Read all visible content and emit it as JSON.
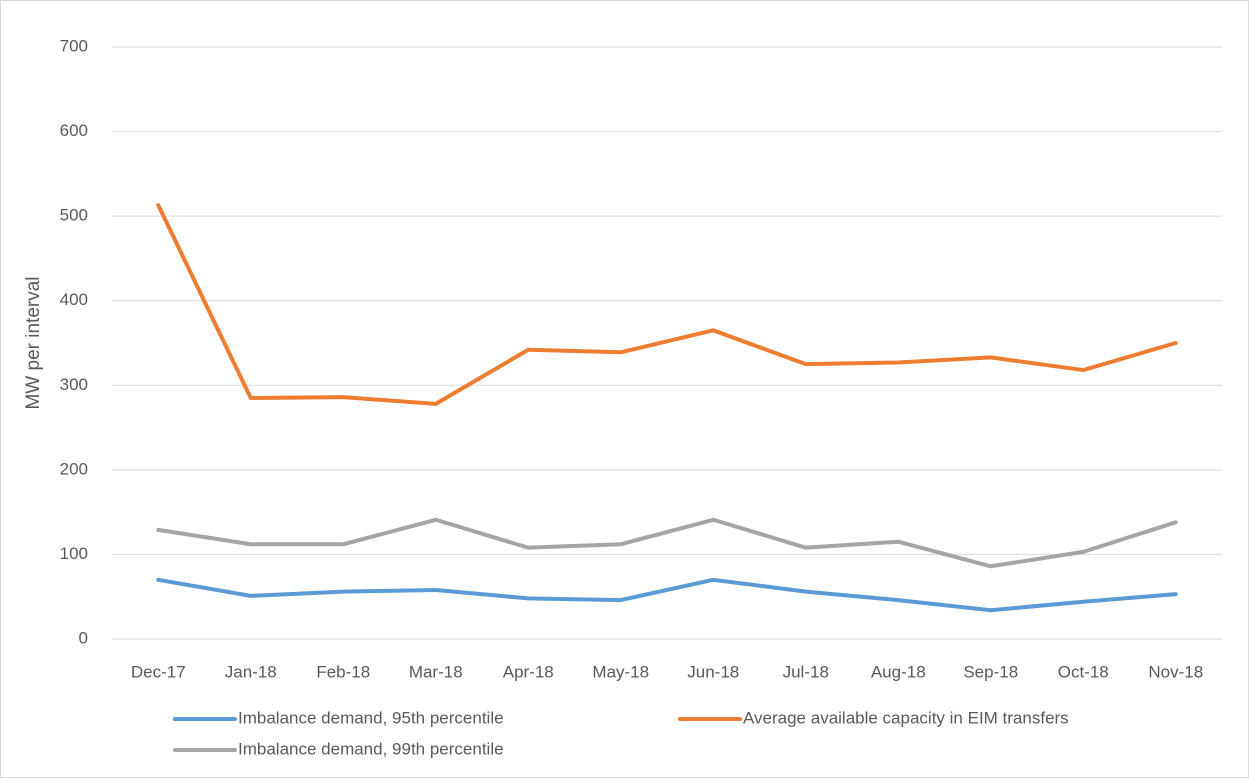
{
  "chart_data": {
    "type": "line",
    "y_label": "MW per interval",
    "categories": [
      "Dec-17",
      "Jan-18",
      "Feb-18",
      "Mar-18",
      "Apr-18",
      "May-18",
      "Jun-18",
      "Jul-18",
      "Aug-18",
      "Sep-18",
      "Oct-18",
      "Nov-18"
    ],
    "series": [
      {
        "name": "Imbalance demand, 95th percentile",
        "color": "#5b9bd5",
        "values": [
          70,
          51,
          56,
          58,
          48,
          46,
          70,
          56,
          46,
          34,
          44,
          53
        ]
      },
      {
        "name": "Average available capacity in EIM transfers",
        "color": "#ed7d31",
        "values": [
          513,
          285,
          286,
          278,
          342,
          339,
          365,
          325,
          327,
          333,
          318,
          350
        ]
      },
      {
        "name": "Imbalance demand, 99th percentile",
        "color": "#a5a5a5",
        "values": [
          129,
          112,
          112,
          141,
          108,
          112,
          141,
          108,
          115,
          86,
          103,
          138
        ]
      }
    ],
    "ylim": [
      0,
      700
    ],
    "yticks": [
      0,
      100,
      200,
      300,
      400,
      500,
      600,
      700
    ],
    "grid": true,
    "legend": "bottom"
  }
}
